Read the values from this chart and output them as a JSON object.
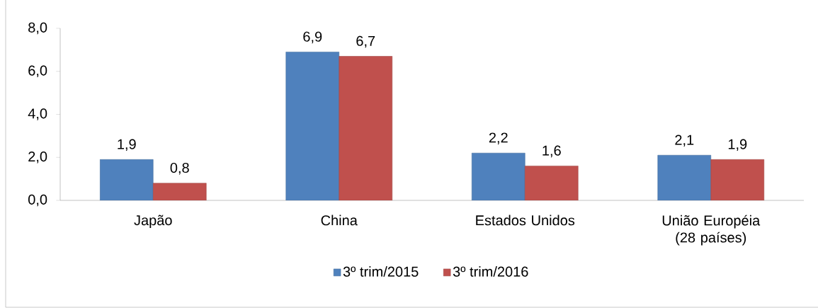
{
  "chart_data": {
    "type": "bar",
    "categories": [
      "Japão",
      "China",
      "Estados Unidos",
      "União Européia (28 países)"
    ],
    "series": [
      {
        "name": "3º trim/2015",
        "color": "#4f81bd",
        "values": [
          1.9,
          6.9,
          2.2,
          2.1
        ],
        "value_labels": [
          "1,9",
          "6,9",
          "2,2",
          "2,1"
        ]
      },
      {
        "name": "3º trim/2016",
        "color": "#c0504d",
        "values": [
          0.8,
          6.7,
          1.6,
          1.9
        ],
        "value_labels": [
          "0,8",
          "6,7",
          "1,6",
          "1,9"
        ]
      }
    ],
    "ylim": [
      0,
      8
    ],
    "yticks": [
      {
        "value": 0,
        "label": "0,0"
      },
      {
        "value": 2,
        "label": "2,0"
      },
      {
        "value": 4,
        "label": "4,0"
      },
      {
        "value": 6,
        "label": "6,0"
      },
      {
        "value": 8,
        "label": "8,0"
      }
    ],
    "legend": "bottom"
  }
}
